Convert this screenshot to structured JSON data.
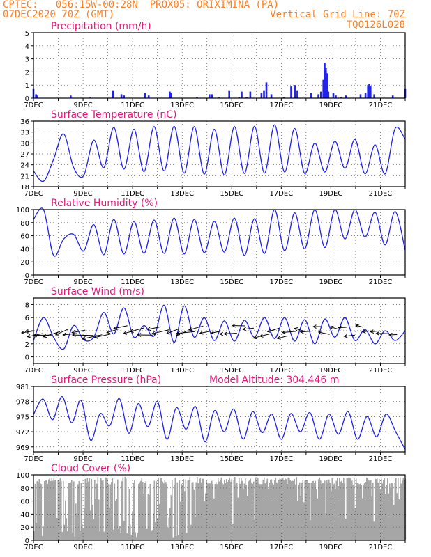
{
  "header": {
    "line1": "CPTEC:   056:15W-00:28N  PROX05: ORIXIMINA (PA)",
    "line2": "07DEC2020 70Z (GMT)",
    "grid_note": "Vertical Grid Line: 70Z",
    "run_code": "TQ0126L028"
  },
  "colors": {
    "header": "#ff7f1e",
    "title": "#e6167c",
    "series": "#2222ee",
    "cloud": "#a6a6a6",
    "grid": "#555555"
  },
  "x_labels": [
    "7DEC",
    "9DEC",
    "11DEC",
    "13DEC",
    "15DEC",
    "17DEC",
    "19DEC",
    "21DEC"
  ],
  "chart_data": [
    {
      "type": "bar",
      "title": "Precipitation (mm/h)",
      "ylim": [
        0,
        5
      ],
      "yticks": [
        "0",
        "1",
        "2",
        "3",
        "4",
        "5"
      ],
      "x_days": [
        7.0,
        7.1,
        7.15,
        8.5,
        9.3,
        10.2,
        10.55,
        10.65,
        11.5,
        11.65,
        12.5,
        12.55,
        13.6,
        14.1,
        14.2,
        14.5,
        14.9,
        15.3,
        15.4,
        15.6,
        15.75,
        16.2,
        16.3,
        16.4,
        16.6,
        17.1,
        17.4,
        17.55,
        17.65,
        18.2,
        18.5,
        18.6,
        18.7,
        18.75,
        18.8,
        18.85,
        18.9,
        19.1,
        19.2,
        19.4,
        19.6,
        20.2,
        20.4,
        20.5,
        20.55,
        20.6,
        20.75,
        21.5,
        22.0
      ],
      "values": [
        0.7,
        0.3,
        0.2,
        0.2,
        0.1,
        0.6,
        0.3,
        0.2,
        0.4,
        0.2,
        0.5,
        0.4,
        0.1,
        0.3,
        0.3,
        0.1,
        0.6,
        0.1,
        0.5,
        0.1,
        0.5,
        0.4,
        0.6,
        1.2,
        0.3,
        0.1,
        0.9,
        1.0,
        0.6,
        0.4,
        0.3,
        0.5,
        1.4,
        2.7,
        2.3,
        1.9,
        0.5,
        0.4,
        0.2,
        0.1,
        0.2,
        0.3,
        0.4,
        1.0,
        1.1,
        0.9,
        0.3,
        0.2,
        0.7
      ]
    },
    {
      "type": "line",
      "title": "Surface Temperature (nC)",
      "ylim": [
        18,
        36
      ],
      "yticks": [
        "18",
        "21",
        "24",
        "27",
        "30",
        "33",
        "36"
      ],
      "series": [
        {
          "values": [
            22.3,
            19.5,
            25.5,
            32.5,
            23.2,
            21.0,
            30.8,
            23.2,
            34.3,
            22.8,
            33.8,
            22.1,
            34.5,
            22.3,
            34.6,
            21.7,
            34.5,
            21.4,
            33.8,
            21.2,
            34.5,
            21.6,
            34.6,
            21.7,
            35.0,
            22.0,
            34.0,
            21.6,
            30.0,
            22.0,
            30.5,
            23.0,
            31.0,
            21.5,
            29.5,
            21.5,
            34.0,
            31.0
          ]
        }
      ]
    },
    {
      "type": "line",
      "title": "Relative Humidity (%)",
      "ylim": [
        0,
        100
      ],
      "yticks": [
        "0",
        "20",
        "40",
        "60",
        "80",
        "100"
      ],
      "series": [
        {
          "values": [
            85,
            100,
            30,
            55,
            62,
            37,
            77,
            31,
            85,
            32,
            82,
            33,
            84,
            33,
            87,
            32,
            85,
            34,
            82,
            35,
            87,
            30,
            86,
            33,
            100,
            37,
            95,
            40,
            100,
            42,
            100,
            55,
            100,
            58,
            96,
            46,
            97,
            38
          ]
        }
      ]
    },
    {
      "type": "line",
      "title": "Surface Wind (m/s)",
      "ylim": [
        -1,
        9
      ],
      "yticks": [
        "0",
        "2",
        "4",
        "6",
        "8"
      ],
      "series": [
        {
          "values": [
            2.5,
            6.0,
            3.0,
            1.2,
            4.8,
            2.6,
            3.0,
            6.8,
            3.5,
            7.5,
            3.0,
            4.8,
            3.2,
            7.9,
            2.2,
            7.8,
            3.0,
            6.0,
            2.5,
            5.5,
            2.4,
            5.6,
            3.0,
            6.0,
            2.8,
            6.0,
            2.4,
            5.7,
            2.0,
            5.8,
            3.0,
            6.0,
            2.5,
            4.2,
            2.0,
            4.0,
            2.5,
            4.0
          ]
        }
      ]
    },
    {
      "type": "line",
      "title": "Surface Pressure (hPa)",
      "annotation": "Model Altitude: 304.446 m",
      "ylim": [
        968,
        981
      ],
      "yticks": [
        "969",
        "972",
        "975",
        "978",
        "981"
      ],
      "series": [
        {
          "values": [
            975.4,
            978.5,
            974.4,
            979.0,
            973.8,
            978.2,
            970.3,
            975.6,
            973.2,
            978.6,
            971.7,
            977.6,
            973.0,
            978.0,
            970.5,
            976.8,
            972.5,
            977.0,
            970.0,
            976.2,
            972.0,
            976.5,
            970.5,
            976.0,
            971.8,
            975.5,
            970.5,
            975.6,
            972.0,
            975.8,
            970.5,
            975.5,
            971.5,
            976.0,
            970.5,
            975.0,
            971.0,
            975.5,
            972.0,
            968.5
          ]
        }
      ]
    },
    {
      "type": "area",
      "title": "Cloud Cover (%)",
      "ylim": [
        0,
        100
      ],
      "yticks": [
        "0",
        "20",
        "40",
        "60",
        "80",
        "100"
      ]
    }
  ]
}
